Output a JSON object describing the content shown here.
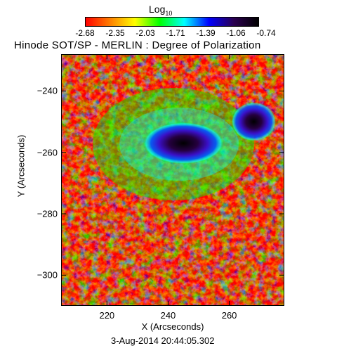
{
  "chart_data": {
    "type": "heatmap",
    "title": "Hinode SOT/SP - MERLIN : Degree of Polarization",
    "xlabel": "X (Arcseconds)",
    "ylabel": "Y (Arcseconds)",
    "xlim": [
      205,
      278
    ],
    "ylim": [
      -310,
      -228
    ],
    "x_ticks": [
      220,
      240,
      260
    ],
    "y_ticks": [
      -240,
      -260,
      -280,
      -300
    ],
    "colorbar": {
      "label": "Log",
      "label_sub": "10",
      "ticks": [
        "-2.68",
        "-2.35",
        "-2.03",
        "-1.71",
        "-1.39",
        "-1.06",
        "-0.74"
      ],
      "range": [
        -2.68,
        -0.74
      ],
      "colormap": [
        "#ff0000",
        "#ff8000",
        "#ffff00",
        "#00ff00",
        "#00ffff",
        "#0000ff",
        "#2b0050",
        "#000000"
      ]
    },
    "features": [
      {
        "x": 245,
        "y": -257,
        "value": -0.74
      },
      {
        "x": 268,
        "y": -250,
        "value": -0.8
      }
    ]
  },
  "footer": {
    "timestamp": "3-Aug-2014 20:44:05.302"
  }
}
